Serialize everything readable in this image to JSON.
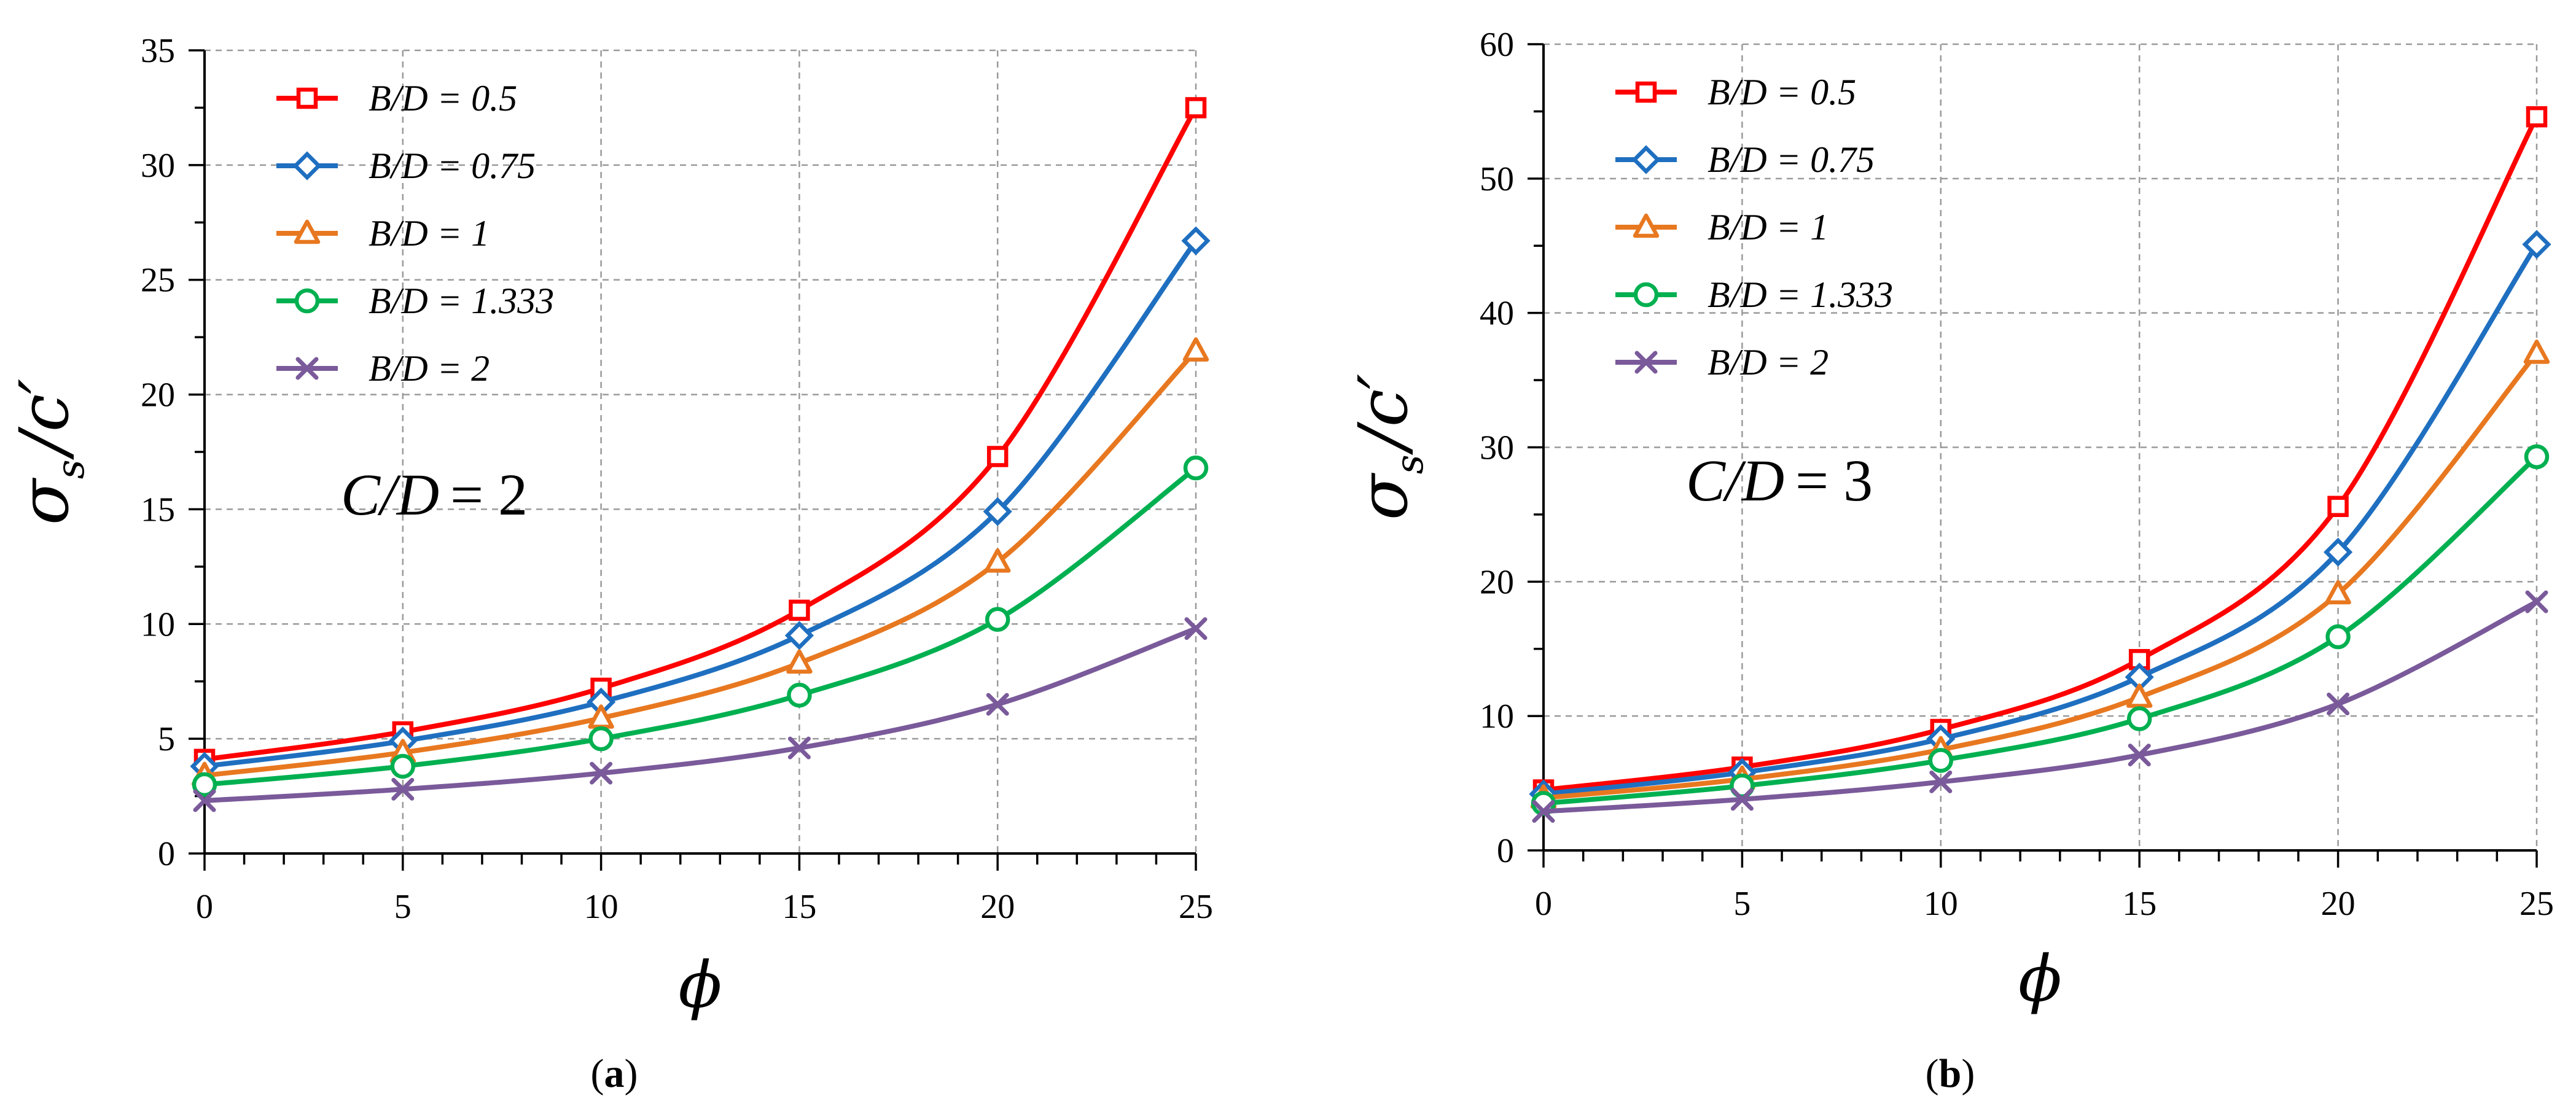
{
  "chart_data": [
    {
      "type": "line",
      "panel_label": "a",
      "annotation": {
        "lhs": "C/D",
        "rhs": "= 2"
      },
      "xlabel": "ϕ",
      "ylabel": {
        "main": "σ",
        "sub": "s",
        "rest": "/c′"
      },
      "xlim": [
        0,
        25
      ],
      "ylim": [
        0,
        35
      ],
      "x_ticks": [
        0,
        5,
        10,
        15,
        20,
        25
      ],
      "y_ticks": [
        0,
        5,
        10,
        15,
        20,
        25,
        30,
        35
      ],
      "grid": true,
      "legend_position": "top-left",
      "x": [
        0,
        5,
        10,
        15,
        20,
        25
      ],
      "series": [
        {
          "name": "B/D = 0.5",
          "color": "#ff0000",
          "marker": "square",
          "values": [
            4.1,
            5.3,
            7.2,
            10.6,
            17.3,
            32.5
          ]
        },
        {
          "name": "B/D = 0.75",
          "color": "#1f6fc0",
          "marker": "diamond",
          "values": [
            3.8,
            4.9,
            6.6,
            9.5,
            14.9,
            26.7
          ]
        },
        {
          "name": "B/D = 1",
          "color": "#e87820",
          "marker": "triangle",
          "values": [
            3.4,
            4.4,
            5.9,
            8.3,
            12.7,
            21.9
          ]
        },
        {
          "name": "B/D = 1.333",
          "color": "#00b050",
          "marker": "circle",
          "values": [
            3.0,
            3.8,
            5.0,
            6.9,
            10.2,
            16.8
          ]
        },
        {
          "name": "B/D = 2",
          "color": "#7a5a9a",
          "marker": "x",
          "values": [
            2.3,
            2.8,
            3.5,
            4.6,
            6.5,
            9.8
          ]
        }
      ]
    },
    {
      "type": "line",
      "panel_label": "b",
      "annotation": {
        "lhs": "C/D",
        "rhs": "= 3"
      },
      "xlabel": "ϕ",
      "ylabel": {
        "main": "σ",
        "sub": "s",
        "rest": "/c′"
      },
      "xlim": [
        0,
        25
      ],
      "ylim": [
        0,
        60
      ],
      "x_ticks": [
        0,
        5,
        10,
        15,
        20,
        25
      ],
      "y_ticks": [
        0,
        10,
        20,
        30,
        40,
        50,
        60
      ],
      "grid": true,
      "legend_position": "top-left",
      "x": [
        0,
        5,
        10,
        15,
        20,
        25
      ],
      "series": [
        {
          "name": "B/D = 0.5",
          "color": "#ff0000",
          "marker": "square",
          "values": [
            4.5,
            6.2,
            9.0,
            14.2,
            25.6,
            54.6
          ]
        },
        {
          "name": "B/D = 0.75",
          "color": "#1f6fc0",
          "marker": "diamond",
          "values": [
            4.2,
            5.8,
            8.3,
            12.9,
            22.2,
            45.1
          ]
        },
        {
          "name": "B/D = 1",
          "color": "#e87820",
          "marker": "triangle",
          "values": [
            3.9,
            5.3,
            7.5,
            11.4,
            19.1,
            37.0
          ]
        },
        {
          "name": "B/D = 1.333",
          "color": "#00b050",
          "marker": "circle",
          "values": [
            3.5,
            4.8,
            6.7,
            9.8,
            15.9,
            29.3
          ]
        },
        {
          "name": "B/D = 2",
          "color": "#7a5a9a",
          "marker": "x",
          "values": [
            2.9,
            3.8,
            5.1,
            7.1,
            10.9,
            18.5
          ]
        }
      ]
    }
  ]
}
